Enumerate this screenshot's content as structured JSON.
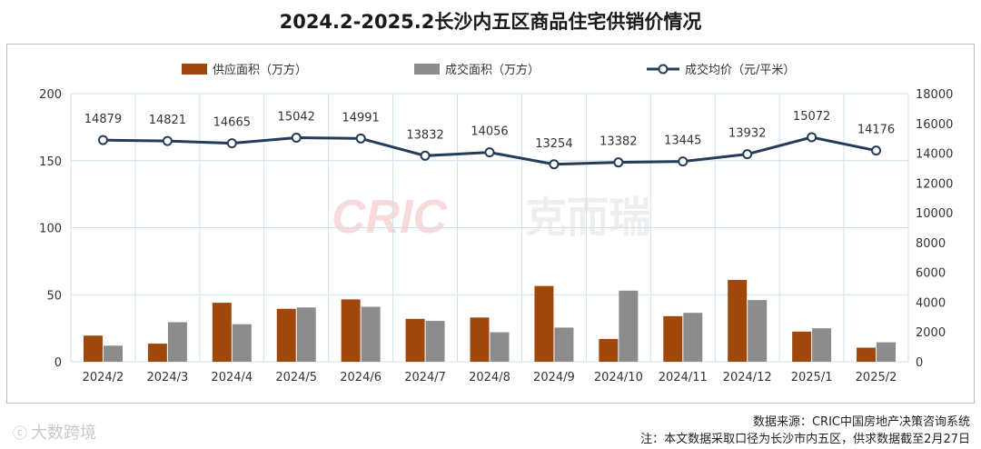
{
  "title": "2024.2-2025.2长沙内五区商品住宅供销价情况",
  "watermark": {
    "latin": "CRIC",
    "cjk": "克而瑞"
  },
  "source": "数据来源：CRIC中国房地产决策咨询系统",
  "note": "注：本文数据采取口径为长沙市内五区，供求数据截至2月27日",
  "brand": "大数跨境",
  "chart_data": {
    "type": "bar+line",
    "categories": [
      "2024/2",
      "2024/3",
      "2024/4",
      "2024/5",
      "2024/6",
      "2024/7",
      "2024/8",
      "2024/9",
      "2024/10",
      "2024/11",
      "2024/12",
      "2025/1",
      "2025/2"
    ],
    "series": [
      {
        "name": "供应面积（万方）",
        "type": "bar",
        "axis": "left",
        "color": "#a0480c",
        "values": [
          19.5,
          13.5,
          44,
          39.5,
          46.5,
          32,
          33,
          56.5,
          17,
          34,
          61,
          22.5,
          10.5
        ]
      },
      {
        "name": "成交面积（万方）",
        "type": "bar",
        "axis": "left",
        "color": "#8c8c8c",
        "values": [
          12,
          29.5,
          28,
          40.5,
          41,
          30.5,
          22,
          25.5,
          53,
          36.5,
          46,
          25,
          14.5
        ]
      },
      {
        "name": "成交均价（元/平米）",
        "type": "line",
        "axis": "right",
        "color": "#243b5a",
        "values": [
          14879,
          14821,
          14665,
          15042,
          14991,
          13832,
          14056,
          13254,
          13382,
          13445,
          13932,
          15072,
          14176
        ]
      }
    ],
    "y_left": {
      "min": 0,
      "max": 200,
      "ticks": [
        0,
        50,
        100,
        150,
        200
      ]
    },
    "y_right": {
      "min": 0,
      "max": 18000,
      "ticks": [
        0,
        2000,
        4000,
        6000,
        8000,
        10000,
        12000,
        14000,
        16000,
        18000
      ]
    },
    "grid": true,
    "legend_position": "top"
  }
}
